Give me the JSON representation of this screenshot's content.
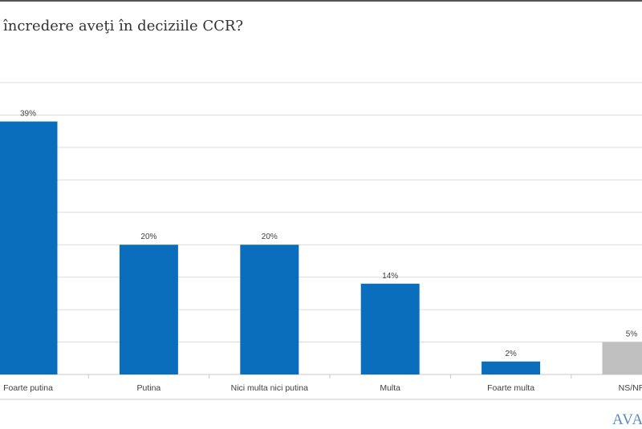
{
  "title": "încredere aveţi în deciziile CCR?",
  "logo_text": "AVAN",
  "chart_data": {
    "type": "bar",
    "categories": [
      "Foarte putina",
      "Putina",
      "Nici multa nici putina",
      "Multa",
      "Foarte multa",
      "NS/NR"
    ],
    "values": [
      39,
      20,
      20,
      14,
      2,
      5
    ],
    "data_labels": [
      "39%",
      "20%",
      "20%",
      "14%",
      "2%",
      "5%"
    ],
    "colors": [
      "#0a6ebd",
      "#0a6ebd",
      "#0a6ebd",
      "#0a6ebd",
      "#0a6ebd",
      "#c0c0c0"
    ],
    "ylim": [
      0,
      45
    ],
    "grid": true,
    "ytick_step": 5
  }
}
